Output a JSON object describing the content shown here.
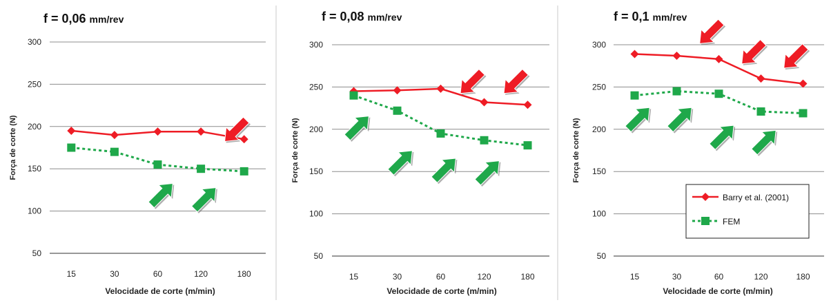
{
  "colors": {
    "barry": "#ee1c25",
    "fem": "#1fa84a",
    "grid": "#8c8c8c",
    "axis": "#595959",
    "arrow_red": "#ee1c25",
    "arrow_green": "#1fa84a"
  },
  "legend": {
    "barry_label": "Barry et al. (2001)",
    "fem_label": "FEM"
  },
  "chart_data": [
    {
      "type": "line",
      "title_main": "f = 0,06",
      "title_unit": "mm/rev",
      "xlabel": "Velocidade de corte (m/min)",
      "ylabel": "Força de corte (N)",
      "categories": [
        "15",
        "30",
        "60",
        "120",
        "180"
      ],
      "ylim": [
        50,
        300
      ],
      "yticks": [
        "50",
        "100",
        "150",
        "200",
        "250",
        "300"
      ],
      "grid": true,
      "series": [
        {
          "name": "Barry et al. (2001)",
          "style": "solid",
          "marker": "diamond",
          "values": [
            195,
            190,
            194,
            194,
            185
          ]
        },
        {
          "name": "FEM",
          "style": "dotted",
          "marker": "square",
          "values": [
            175,
            170,
            155,
            150,
            147
          ]
        }
      ],
      "arrows": [
        {
          "color": "red",
          "cat": 4.3,
          "val": 195,
          "dir": "down-left"
        },
        {
          "color": "green",
          "cat": 2.6,
          "val": 120,
          "dir": "up-right"
        },
        {
          "color": "green",
          "cat": 3.6,
          "val": 115,
          "dir": "up-right"
        }
      ]
    },
    {
      "type": "line",
      "title_main": "f = 0,08",
      "title_unit": "mm/rev",
      "xlabel": "Velocidade de corte (m/min)",
      "ylabel": "Força de corte (N)",
      "categories": [
        "15",
        "30",
        "60",
        "120",
        "180"
      ],
      "ylim": [
        50,
        300
      ],
      "yticks": [
        "50",
        "100",
        "150",
        "200",
        "250",
        "300"
      ],
      "grid": true,
      "series": [
        {
          "name": "Barry et al. (2001)",
          "style": "solid",
          "marker": "diamond",
          "values": [
            245,
            246,
            248,
            232,
            229
          ]
        },
        {
          "name": "FEM",
          "style": "dotted",
          "marker": "square",
          "values": [
            240,
            222,
            195,
            187,
            181
          ]
        }
      ],
      "arrows": [
        {
          "color": "red",
          "cat": 3.2,
          "val": 255,
          "dir": "down-left"
        },
        {
          "color": "red",
          "cat": 4.2,
          "val": 255,
          "dir": "down-left"
        },
        {
          "color": "green",
          "cat": 0.6,
          "val": 203,
          "dir": "up-right"
        },
        {
          "color": "green",
          "cat": 1.6,
          "val": 162,
          "dir": "up-right"
        },
        {
          "color": "green",
          "cat": 2.6,
          "val": 153,
          "dir": "up-right"
        },
        {
          "color": "green",
          "cat": 3.6,
          "val": 150,
          "dir": "up-right"
        }
      ]
    },
    {
      "type": "line",
      "title_main": "f = 0,1",
      "title_unit": "mm/rev",
      "xlabel": "Velocidade de corte (m/min)",
      "ylabel": "Força de corte (N)",
      "categories": [
        "15",
        "30",
        "60",
        "120",
        "180"
      ],
      "ylim": [
        50,
        300
      ],
      "yticks": [
        "50",
        "100",
        "150",
        "200",
        "250",
        "300"
      ],
      "grid": true,
      "series": [
        {
          "name": "Barry et al. (2001)",
          "style": "solid",
          "marker": "diamond",
          "values": [
            289,
            287,
            283,
            260,
            254
          ]
        },
        {
          "name": "FEM",
          "style": "dotted",
          "marker": "square",
          "values": [
            240,
            245,
            242,
            221,
            219
          ]
        }
      ],
      "arrows": [
        {
          "color": "red",
          "cat": 2.3,
          "val": 314,
          "dir": "down-left"
        },
        {
          "color": "red",
          "cat": 3.3,
          "val": 290,
          "dir": "down-left"
        },
        {
          "color": "red",
          "cat": 4.3,
          "val": 285,
          "dir": "down-left"
        },
        {
          "color": "green",
          "cat": 0.6,
          "val": 213,
          "dir": "up-right"
        },
        {
          "color": "green",
          "cat": 1.6,
          "val": 213,
          "dir": "up-right"
        },
        {
          "color": "green",
          "cat": 2.6,
          "val": 192,
          "dir": "up-right"
        },
        {
          "color": "green",
          "cat": 3.6,
          "val": 186,
          "dir": "up-right"
        }
      ]
    }
  ]
}
